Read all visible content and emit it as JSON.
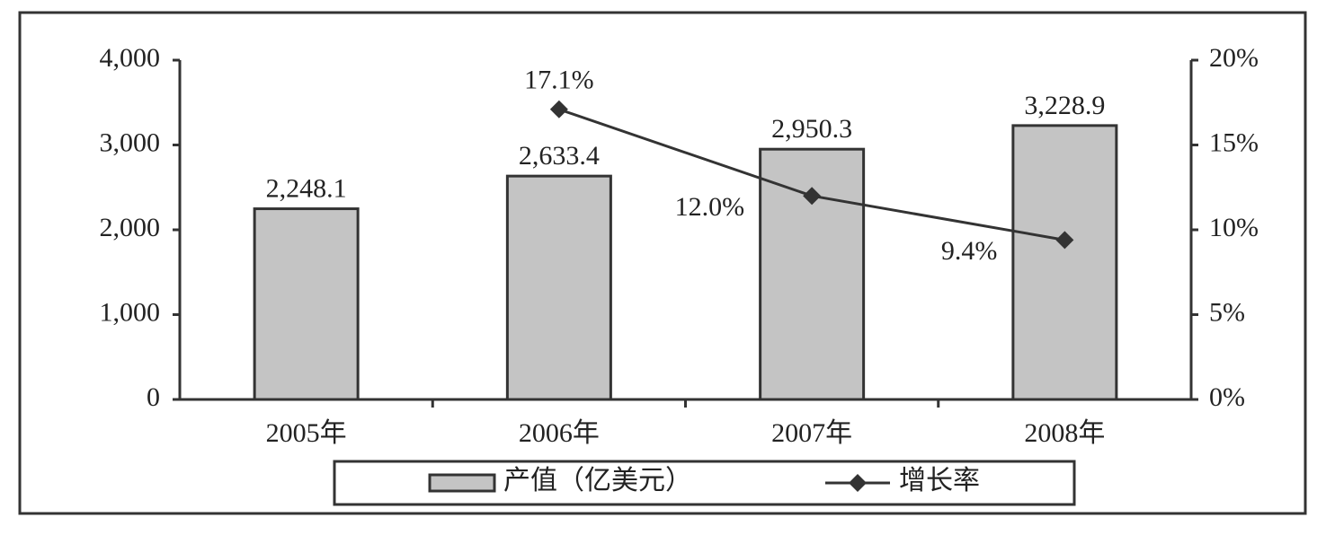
{
  "chart_data": {
    "type": "bar-line",
    "categories": [
      "2005年",
      "2006年",
      "2007年",
      "2008年"
    ],
    "series": [
      {
        "name": "产值（亿美元）",
        "type": "bar",
        "color": "#c4c4c4",
        "values": [
          2248.1,
          2633.4,
          2950.3,
          3228.9
        ],
        "value_labels": [
          "2,248.1",
          "2,633.4",
          "2,950.3",
          "3,228.9"
        ]
      },
      {
        "name": "增长率",
        "type": "line",
        "axis": "y2",
        "color": "#333333",
        "values": [
          null,
          17.1,
          12.0,
          9.4
        ],
        "value_labels": [
          null,
          "17.1%",
          "12.0%",
          "9.4%"
        ]
      }
    ],
    "ylim": [
      0,
      4000
    ],
    "yticks": [
      0,
      {
        "value": 1000,
        "label": "1,000"
      },
      {
        "value": 2000,
        "label": "2,000"
      },
      {
        "value": 3000,
        "label": "3,000"
      },
      {
        "value": 4000,
        "label": "4,000"
      }
    ],
    "y2lim": [
      0,
      20
    ],
    "y2ticks": [
      {
        "value": 0,
        "label": "0%"
      },
      {
        "value": 5,
        "label": "5%"
      },
      {
        "value": 10,
        "label": "10%"
      },
      {
        "value": 15,
        "label": "15%"
      },
      {
        "value": 20,
        "label": "20%"
      }
    ],
    "legend": "bottom"
  }
}
